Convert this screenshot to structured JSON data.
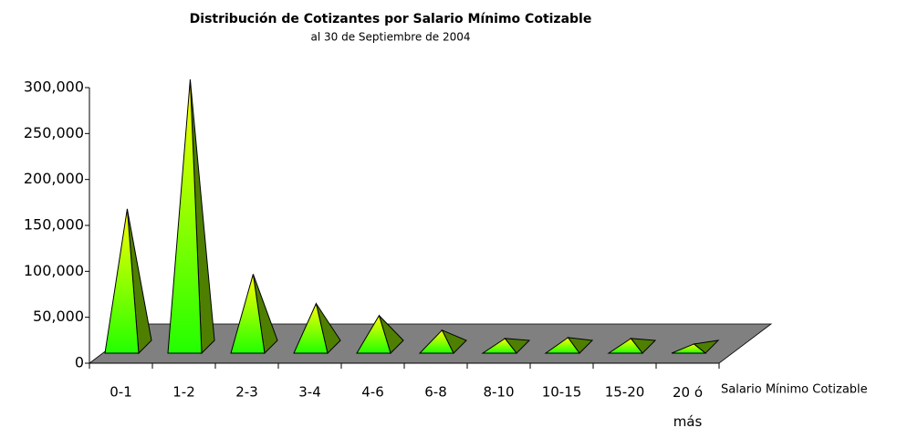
{
  "chart_data": {
    "type": "pyramid3d",
    "title": "Distribución de Cotizantes por Salario Mínimo Cotizable",
    "subtitle": "al 30 de Septiembre de 2004",
    "x_label": "Salario Mínimo Cotizable",
    "categories": [
      "0-1",
      "1-2",
      "2-3",
      "3-4",
      "4-6",
      "6-8",
      "8-10",
      "10-15",
      "15-20",
      "20 ó más"
    ],
    "values": [
      157000,
      298000,
      86000,
      54000,
      41000,
      25000,
      16000,
      17000,
      16000,
      10000
    ],
    "ylim": [
      0,
      300000
    ],
    "yticks": [
      0,
      {
        "value": 50000,
        "label": "50,000"
      },
      {
        "value": 100000,
        "label": "100,000"
      },
      {
        "value": 150000,
        "label": "150,000"
      },
      {
        "value": 200000,
        "label": "200,000"
      },
      {
        "value": 250000,
        "label": "250,000"
      },
      {
        "value": 300000,
        "label": "300,000"
      }
    ],
    "colors": {
      "front_top": "#ffff00",
      "front_bottom": "#22ff00",
      "side": "#4f7f00",
      "floor": "#808080"
    }
  }
}
